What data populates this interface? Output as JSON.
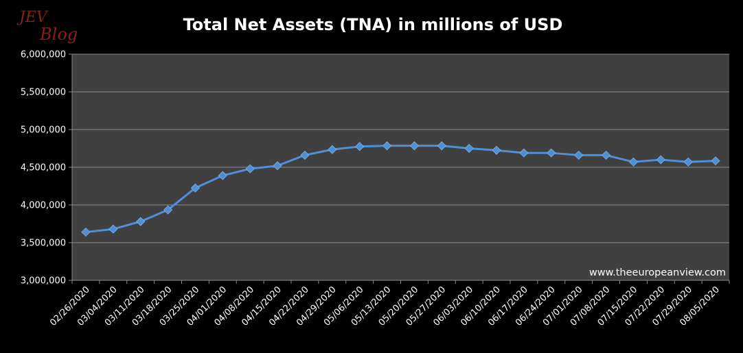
{
  "logo": {
    "line1": "JEV",
    "line2": "Blog"
  },
  "chart_data": {
    "type": "line",
    "title": "Total Net Assets (TNA) in millions of USD",
    "watermark": "www.theeuropeanview.com",
    "ylim": [
      3000000,
      6000000
    ],
    "yticks": [
      "3,000,000",
      "3,500,000",
      "4,000,000",
      "4,500,000",
      "5,000,000",
      "5,500,000",
      "6,000,000"
    ],
    "ytick_values": [
      3000000,
      3500000,
      4000000,
      4500000,
      5000000,
      5500000,
      6000000
    ],
    "grid": true,
    "colors": {
      "line": "#4f8fd6",
      "plot_bg": "#404040",
      "grid": "#8c8c8c",
      "background": "#000000"
    },
    "categories": [
      "02/26/2020",
      "03/04/2020",
      "03/11/2020",
      "03/18/2020",
      "03/25/2020",
      "04/01/2020",
      "04/08/2020",
      "04/15/2020",
      "04/22/2020",
      "04/29/2020",
      "05/06/2020",
      "05/13/2020",
      "05/20/2020",
      "05/27/2020",
      "06/03/2020",
      "06/10/2020",
      "06/17/2020",
      "06/24/2020",
      "07/01/2020",
      "07/08/2020",
      "07/15/2020",
      "07/22/2020",
      "07/29/2020",
      "08/05/2020"
    ],
    "series": [
      {
        "values": [
          3640000,
          3680000,
          3780000,
          3935000,
          4225000,
          4390000,
          4480000,
          4520000,
          4660000,
          4735000,
          4775000,
          4785000,
          4785000,
          4785000,
          4750000,
          4725000,
          4690000,
          4690000,
          4660000,
          4660000,
          4570000,
          4600000,
          4570000,
          4585000
        ]
      }
    ]
  }
}
